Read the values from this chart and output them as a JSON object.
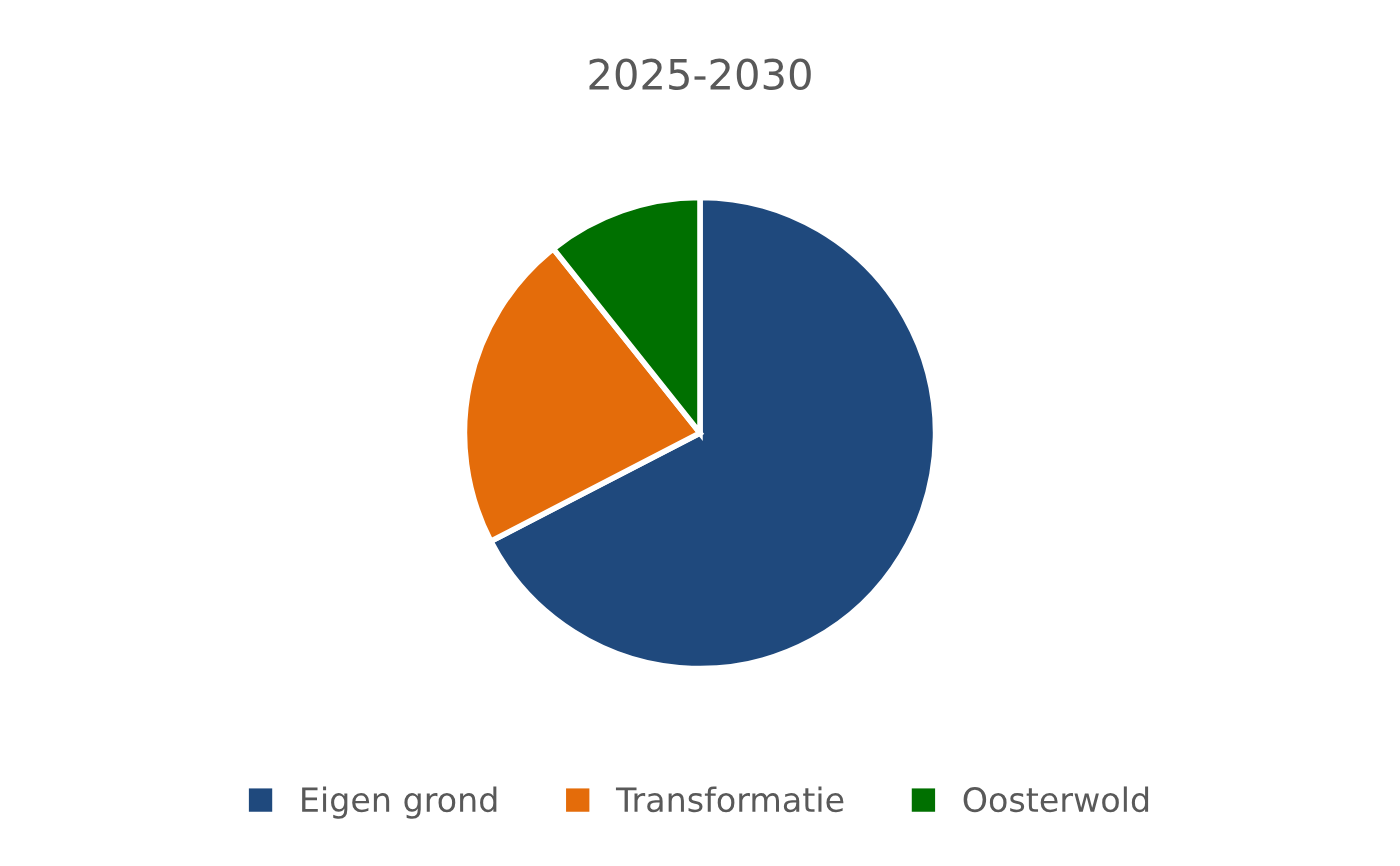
{
  "chart_data": {
    "type": "pie",
    "title": "2025-2030",
    "categories": [
      "Eigen grond",
      "Transformatie",
      "Oosterwold"
    ],
    "values": [
      67.4,
      21.9,
      10.7
    ],
    "colors": [
      "#1f497d",
      "#e46c0a",
      "#007000"
    ],
    "legend": "bottom"
  }
}
